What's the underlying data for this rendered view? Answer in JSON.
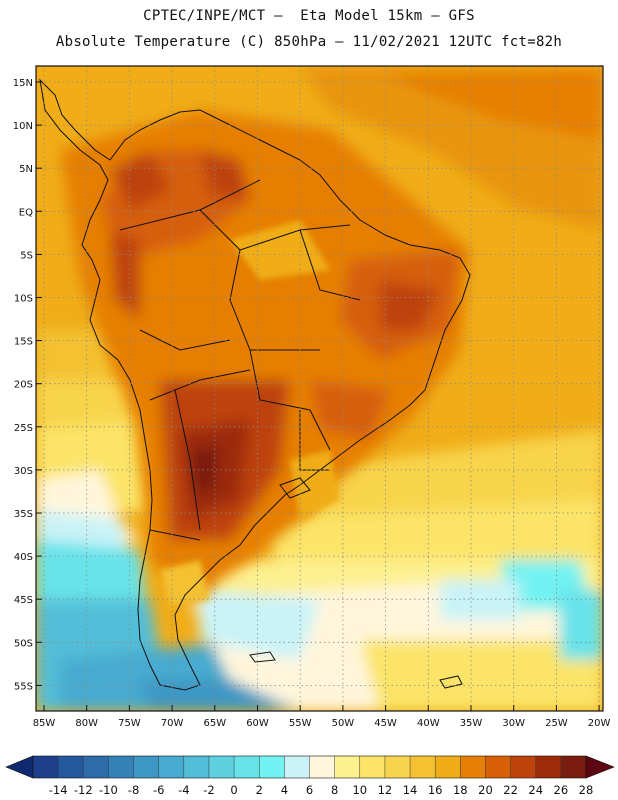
{
  "header": {
    "line1": "CPTEC/INPE/MCT –  Eta Model 15km – GFS",
    "line2": "Absolute Temperature (C) 850hPa – 11/02/2021 12UTC fct=82h"
  },
  "map": {
    "lat_labels": [
      "15N",
      "10N",
      "5N",
      "EQ",
      "5S",
      "10S",
      "15S",
      "20S",
      "25S",
      "30S",
      "35S",
      "40S",
      "45S",
      "50S",
      "55S"
    ],
    "lon_labels": [
      "85W",
      "80W",
      "75W",
      "70W",
      "65W",
      "60W",
      "55W",
      "50W",
      "45W",
      "40W",
      "35W",
      "30W",
      "25W",
      "20W"
    ]
  },
  "colorbar": {
    "ticks": [
      "-14",
      "-12",
      "-10",
      "-8",
      "-6",
      "-4",
      "-2",
      "0",
      "2",
      "4",
      "6",
      "8",
      "10",
      "12",
      "14",
      "16",
      "18",
      "20",
      "22",
      "24",
      "26",
      "28"
    ],
    "colors": [
      "#1d3f8c",
      "#24579d",
      "#2d6bab",
      "#3582b8",
      "#3d97c4",
      "#47aacf",
      "#52bed8",
      "#5ed1e0",
      "#68e3ea",
      "#72f2f2",
      "#c9f3f8",
      "#fff6dc",
      "#fdf08f",
      "#fbe467",
      "#f8d44c",
      "#f3c132",
      "#f0ad18",
      "#e67f06",
      "#d65f08",
      "#bd420b",
      "#9d2b0b",
      "#7a1d0e"
    ],
    "low_arrow_color": "#0f2a70",
    "high_arrow_color": "#5e0512"
  }
}
